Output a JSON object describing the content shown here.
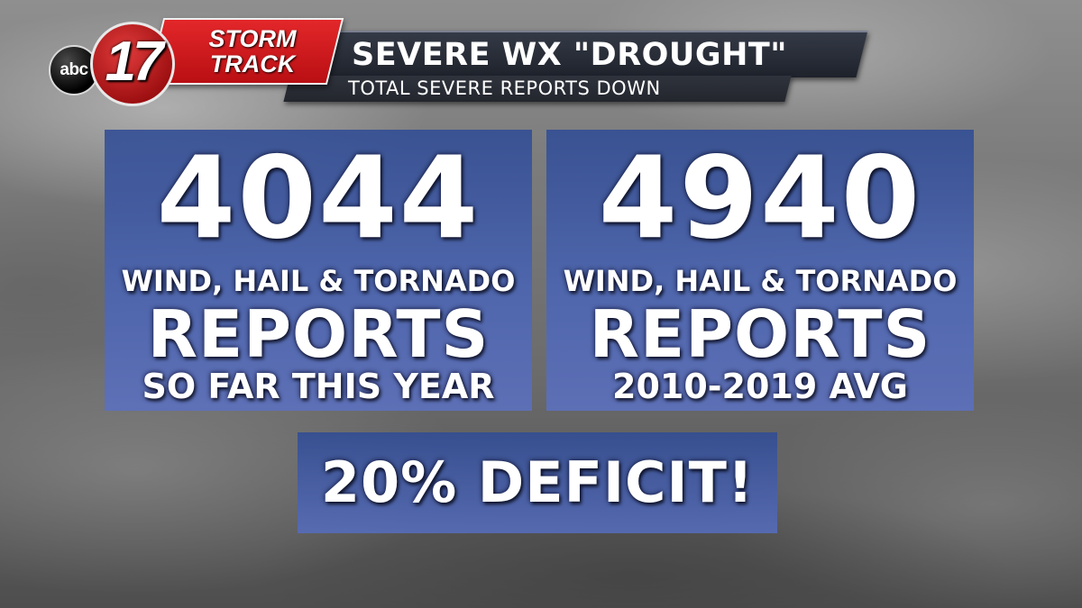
{
  "branding": {
    "network": "abc",
    "channel_number": "17",
    "show_line1": "STORM",
    "show_line2": "TRACK",
    "brand_red": "#c8161b"
  },
  "header": {
    "title": "SEVERE WX \"DROUGHT\"",
    "subtitle": "TOTAL SEVERE REPORTS DOWN"
  },
  "panels": [
    {
      "number": "4044",
      "kind": "WIND, HAIL & TORNADO",
      "label": "REPORTS",
      "period": "SO FAR THIS YEAR"
    },
    {
      "number": "4940",
      "kind": "WIND, HAIL & TORNADO",
      "label": "REPORTS",
      "period": "2010-2019 AVG"
    }
  ],
  "callout": "20% DEFICIT!",
  "colors": {
    "panel_blue": "#3e5aa6",
    "title_bar": "#262a33"
  }
}
